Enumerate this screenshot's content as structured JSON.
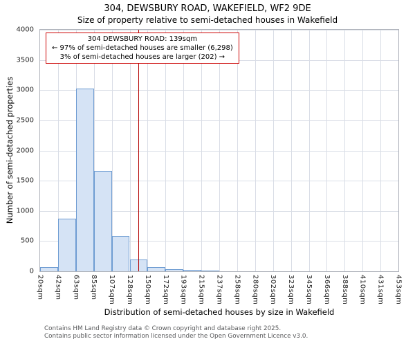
{
  "footer": {
    "line1": "Contains HM Land Registry data © Crown copyright and database right 2025.",
    "line2": "Contains public sector information licensed under the Open Government Licence v3.0."
  },
  "chart_data": {
    "type": "bar",
    "title": "304, DEWSBURY ROAD, WAKEFIELD, WF2 9DE",
    "subtitle": "Size of property relative to semi-detached houses in Wakefield",
    "xlabel": "Distribution of semi-detached houses by size in Wakefield",
    "ylabel": "Number of semi-detached properties",
    "ylim": [
      0,
      4000
    ],
    "x_range_sqm": [
      20,
      453
    ],
    "y_ticks": [
      0,
      500,
      1000,
      1500,
      2000,
      2500,
      3000,
      3500,
      4000
    ],
    "x_tick_labels": [
      "20sqm",
      "42sqm",
      "63sqm",
      "85sqm",
      "107sqm",
      "128sqm",
      "150sqm",
      "172sqm",
      "193sqm",
      "215sqm",
      "237sqm",
      "258sqm",
      "280sqm",
      "302sqm",
      "323sqm",
      "345sqm",
      "366sqm",
      "388sqm",
      "410sqm",
      "431sqm",
      "453sqm"
    ],
    "values": [
      70,
      870,
      3025,
      1660,
      590,
      200,
      70,
      40,
      25,
      15,
      0,
      0,
      0,
      0,
      0,
      0,
      0,
      0,
      0,
      0
    ],
    "marker": {
      "value_sqm": 139
    },
    "annotation": {
      "line1": "304 DEWSBURY ROAD: 139sqm",
      "line2": "← 97% of semi-detached houses are smaller (6,298)",
      "line3": "3% of semi-detached houses are larger (202) →"
    },
    "grid": true,
    "legend_position": "none",
    "colors": {
      "bar_fill": "#d5e3f5",
      "bar_border": "#6e9cd2",
      "marker_line": "#b30000",
      "annotation_border": "#cc0000",
      "grid": "#d9dde6"
    }
  }
}
